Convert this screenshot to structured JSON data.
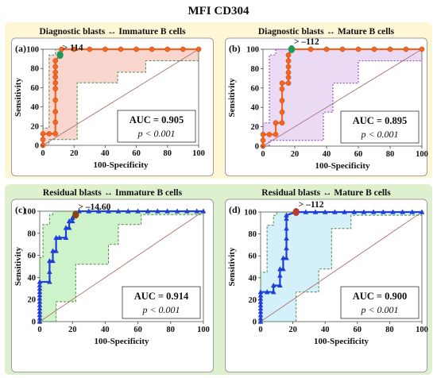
{
  "figure_title": "MFI CD304",
  "colors": {
    "top_background": "#fdf7d6",
    "bottom_background": "#dff0cf",
    "diagonal": "#b07070",
    "ci_line": "#4d8c4d",
    "roc_orange": "#f26522",
    "roc_blue": "#1f3fd6",
    "cut_green": "#1f9a5a",
    "cut_brown": "#8b4513",
    "cut_red": "#c0392b"
  },
  "chart_data": [
    {
      "id": "a",
      "type": "line",
      "panel_label": "(a)",
      "title": "Diagnostic blasts ↔ Immature B cells",
      "xlabel": "100-Specificity",
      "ylabel": "Sensitivity",
      "xlim": [
        0,
        100
      ],
      "ylim": [
        0,
        100
      ],
      "xticks": [
        0,
        20,
        40,
        60,
        80,
        100
      ],
      "yticks": [
        0,
        20,
        40,
        60,
        80,
        100
      ],
      "auc_text": "AUC = 0.905",
      "p_text": "p < 0.001",
      "cutoff_label": "> 114",
      "cutoff_point": [
        11,
        94
      ],
      "marker": "circle",
      "line_color": "#f26522",
      "ci_fill": "#f7cfc6",
      "cutoff_color": "#1f9a5a",
      "roc_points": [
        [
          0,
          0
        ],
        [
          0,
          6
        ],
        [
          0,
          12
        ],
        [
          4,
          12
        ],
        [
          8,
          12
        ],
        [
          8,
          24
        ],
        [
          8,
          35
        ],
        [
          8,
          47
        ],
        [
          8,
          59
        ],
        [
          8,
          65
        ],
        [
          8,
          71
        ],
        [
          8,
          76
        ],
        [
          8,
          82
        ],
        [
          8,
          88
        ],
        [
          11,
          94
        ],
        [
          12,
          100
        ],
        [
          20,
          100
        ],
        [
          30,
          100
        ],
        [
          40,
          100
        ],
        [
          50,
          100
        ],
        [
          60,
          100
        ],
        [
          70,
          100
        ],
        [
          80,
          100
        ],
        [
          90,
          100
        ],
        [
          100,
          100
        ]
      ],
      "ci_upper": [
        [
          0,
          0
        ],
        [
          0,
          18
        ],
        [
          4,
          18
        ],
        [
          4,
          94
        ],
        [
          8,
          94
        ],
        [
          8,
          100
        ],
        [
          100,
          100
        ]
      ],
      "ci_lower": [
        [
          0,
          0
        ],
        [
          4,
          0
        ],
        [
          4,
          6
        ],
        [
          22,
          6
        ],
        [
          22,
          65
        ],
        [
          48,
          65
        ],
        [
          48,
          76
        ],
        [
          66,
          76
        ],
        [
          66,
          88
        ],
        [
          100,
          88
        ]
      ]
    },
    {
      "id": "b",
      "type": "line",
      "panel_label": "(b)",
      "title": "Diagnostic blasts ↔ Mature B cells",
      "xlabel": "100-Specificity",
      "ylabel": "Sensitivity",
      "xlim": [
        0,
        100
      ],
      "ylim": [
        0,
        100
      ],
      "xticks": [
        0,
        20,
        40,
        60,
        80,
        100
      ],
      "yticks": [
        0,
        20,
        40,
        60,
        80,
        100
      ],
      "auc_text": "AUC = 0.895",
      "p_text": "p < 0.001",
      "cutoff_label": "> –112",
      "cutoff_point": [
        18,
        100
      ],
      "marker": "circle",
      "line_color": "#f26522",
      "ci_fill": "#e6d3f2",
      "cutoff_color": "#1f9a5a",
      "roc_points": [
        [
          0,
          0
        ],
        [
          0,
          6
        ],
        [
          0,
          12
        ],
        [
          4,
          12
        ],
        [
          8,
          12
        ],
        [
          8,
          24
        ],
        [
          12,
          24
        ],
        [
          12,
          35
        ],
        [
          12,
          47
        ],
        [
          12,
          59
        ],
        [
          12,
          65
        ],
        [
          16,
          65
        ],
        [
          16,
          71
        ],
        [
          16,
          76
        ],
        [
          16,
          82
        ],
        [
          16,
          88
        ],
        [
          16,
          94
        ],
        [
          18,
          100
        ],
        [
          30,
          100
        ],
        [
          40,
          100
        ],
        [
          50,
          100
        ],
        [
          60,
          100
        ],
        [
          70,
          100
        ],
        [
          80,
          100
        ],
        [
          90,
          100
        ],
        [
          100,
          100
        ]
      ],
      "ci_upper": [
        [
          0,
          0
        ],
        [
          0,
          24
        ],
        [
          4,
          24
        ],
        [
          4,
          94
        ],
        [
          8,
          94
        ],
        [
          8,
          100
        ],
        [
          100,
          100
        ]
      ],
      "ci_lower": [
        [
          0,
          0
        ],
        [
          4,
          0
        ],
        [
          4,
          6
        ],
        [
          38,
          6
        ],
        [
          38,
          35
        ],
        [
          44,
          35
        ],
        [
          44,
          65
        ],
        [
          60,
          65
        ],
        [
          60,
          88
        ],
        [
          100,
          88
        ]
      ]
    },
    {
      "id": "c",
      "type": "line",
      "panel_label": "(c)",
      "title": "Residual blasts ↔ Immature B cells",
      "xlabel": "100-Specificity",
      "ylabel": "Sensitivity",
      "xlim": [
        0,
        100
      ],
      "ylim": [
        0,
        100
      ],
      "xticks": [
        0,
        20,
        40,
        60,
        80,
        100
      ],
      "yticks": [
        0,
        20,
        40,
        60,
        80,
        100
      ],
      "auc_text": "AUC = 0.914",
      "p_text": "p < 0.001",
      "cutoff_label": "> –14.60",
      "cutoff_point": [
        22,
        97
      ],
      "marker": "triangle",
      "line_color": "#1f3fd6",
      "ci_fill": "#c6f0c0",
      "cutoff_color": "#8b4513",
      "roc_points": [
        [
          0,
          0
        ],
        [
          0,
          3
        ],
        [
          0,
          6
        ],
        [
          0,
          9
        ],
        [
          0,
          12
        ],
        [
          0,
          15
        ],
        [
          0,
          18
        ],
        [
          0,
          21
        ],
        [
          0,
          24
        ],
        [
          0,
          27
        ],
        [
          0,
          30
        ],
        [
          0,
          33
        ],
        [
          0,
          36
        ],
        [
          6,
          36
        ],
        [
          6,
          45
        ],
        [
          6,
          55
        ],
        [
          8,
          55
        ],
        [
          8,
          64
        ],
        [
          10,
          64
        ],
        [
          10,
          76
        ],
        [
          12,
          76
        ],
        [
          16,
          76
        ],
        [
          16,
          85
        ],
        [
          18,
          85
        ],
        [
          18,
          91
        ],
        [
          20,
          91
        ],
        [
          20,
          94
        ],
        [
          22,
          97
        ],
        [
          24,
          100
        ],
        [
          30,
          100
        ],
        [
          36,
          100
        ],
        [
          42,
          100
        ],
        [
          48,
          100
        ],
        [
          54,
          100
        ],
        [
          60,
          100
        ],
        [
          66,
          100
        ],
        [
          72,
          100
        ],
        [
          78,
          100
        ],
        [
          84,
          100
        ],
        [
          90,
          100
        ],
        [
          96,
          100
        ],
        [
          100,
          100
        ]
      ],
      "ci_upper": [
        [
          0,
          0
        ],
        [
          0,
          58
        ],
        [
          2,
          58
        ],
        [
          2,
          88
        ],
        [
          6,
          88
        ],
        [
          6,
          97
        ],
        [
          8,
          97
        ],
        [
          8,
          100
        ],
        [
          100,
          100
        ]
      ],
      "ci_lower": [
        [
          0,
          0
        ],
        [
          10,
          0
        ],
        [
          10,
          18
        ],
        [
          22,
          18
        ],
        [
          22,
          52
        ],
        [
          42,
          52
        ],
        [
          42,
          70
        ],
        [
          48,
          70
        ],
        [
          48,
          88
        ],
        [
          62,
          88
        ],
        [
          62,
          97
        ],
        [
          100,
          97
        ]
      ]
    },
    {
      "id": "d",
      "type": "line",
      "panel_label": "(d)",
      "title": "Residual blasts ↔ Mature B cells",
      "xlabel": "100-Specificity",
      "ylabel": "Sensitivity",
      "xlim": [
        0,
        100
      ],
      "ylim": [
        0,
        100
      ],
      "xticks": [
        0,
        20,
        40,
        60,
        80,
        100
      ],
      "yticks": [
        0,
        20,
        40,
        60,
        80,
        100
      ],
      "auc_text": "AUC = 0.900",
      "p_text": "p < 0.001",
      "cutoff_label": "> –112",
      "cutoff_point": [
        22,
        100
      ],
      "marker": "triangle",
      "line_color": "#1f3fd6",
      "ci_fill": "#cdeefa",
      "cutoff_color": "#c0392b",
      "roc_points": [
        [
          0,
          0
        ],
        [
          0,
          3
        ],
        [
          0,
          6
        ],
        [
          0,
          9
        ],
        [
          0,
          12
        ],
        [
          0,
          15
        ],
        [
          0,
          18
        ],
        [
          0,
          21
        ],
        [
          0,
          24
        ],
        [
          0,
          27
        ],
        [
          4,
          27
        ],
        [
          8,
          27
        ],
        [
          8,
          33
        ],
        [
          12,
          33
        ],
        [
          12,
          42
        ],
        [
          12,
          48
        ],
        [
          14,
          48
        ],
        [
          14,
          58
        ],
        [
          16,
          58
        ],
        [
          16,
          67
        ],
        [
          16,
          76
        ],
        [
          16,
          85
        ],
        [
          16,
          94
        ],
        [
          16,
          97
        ],
        [
          22,
          100
        ],
        [
          28,
          100
        ],
        [
          34,
          100
        ],
        [
          40,
          100
        ],
        [
          46,
          100
        ],
        [
          52,
          100
        ],
        [
          58,
          100
        ],
        [
          64,
          100
        ],
        [
          70,
          100
        ],
        [
          76,
          100
        ],
        [
          82,
          100
        ],
        [
          88,
          100
        ],
        [
          94,
          100
        ],
        [
          100,
          100
        ]
      ],
      "ci_upper": [
        [
          0,
          0
        ],
        [
          0,
          45
        ],
        [
          4,
          45
        ],
        [
          4,
          88
        ],
        [
          8,
          88
        ],
        [
          8,
          97
        ],
        [
          10,
          97
        ],
        [
          10,
          100
        ],
        [
          100,
          100
        ]
      ],
      "ci_lower": [
        [
          0,
          0
        ],
        [
          22,
          0
        ],
        [
          22,
          27
        ],
        [
          36,
          27
        ],
        [
          36,
          48
        ],
        [
          44,
          48
        ],
        [
          44,
          85
        ],
        [
          56,
          85
        ],
        [
          56,
          97
        ],
        [
          100,
          97
        ]
      ]
    }
  ]
}
